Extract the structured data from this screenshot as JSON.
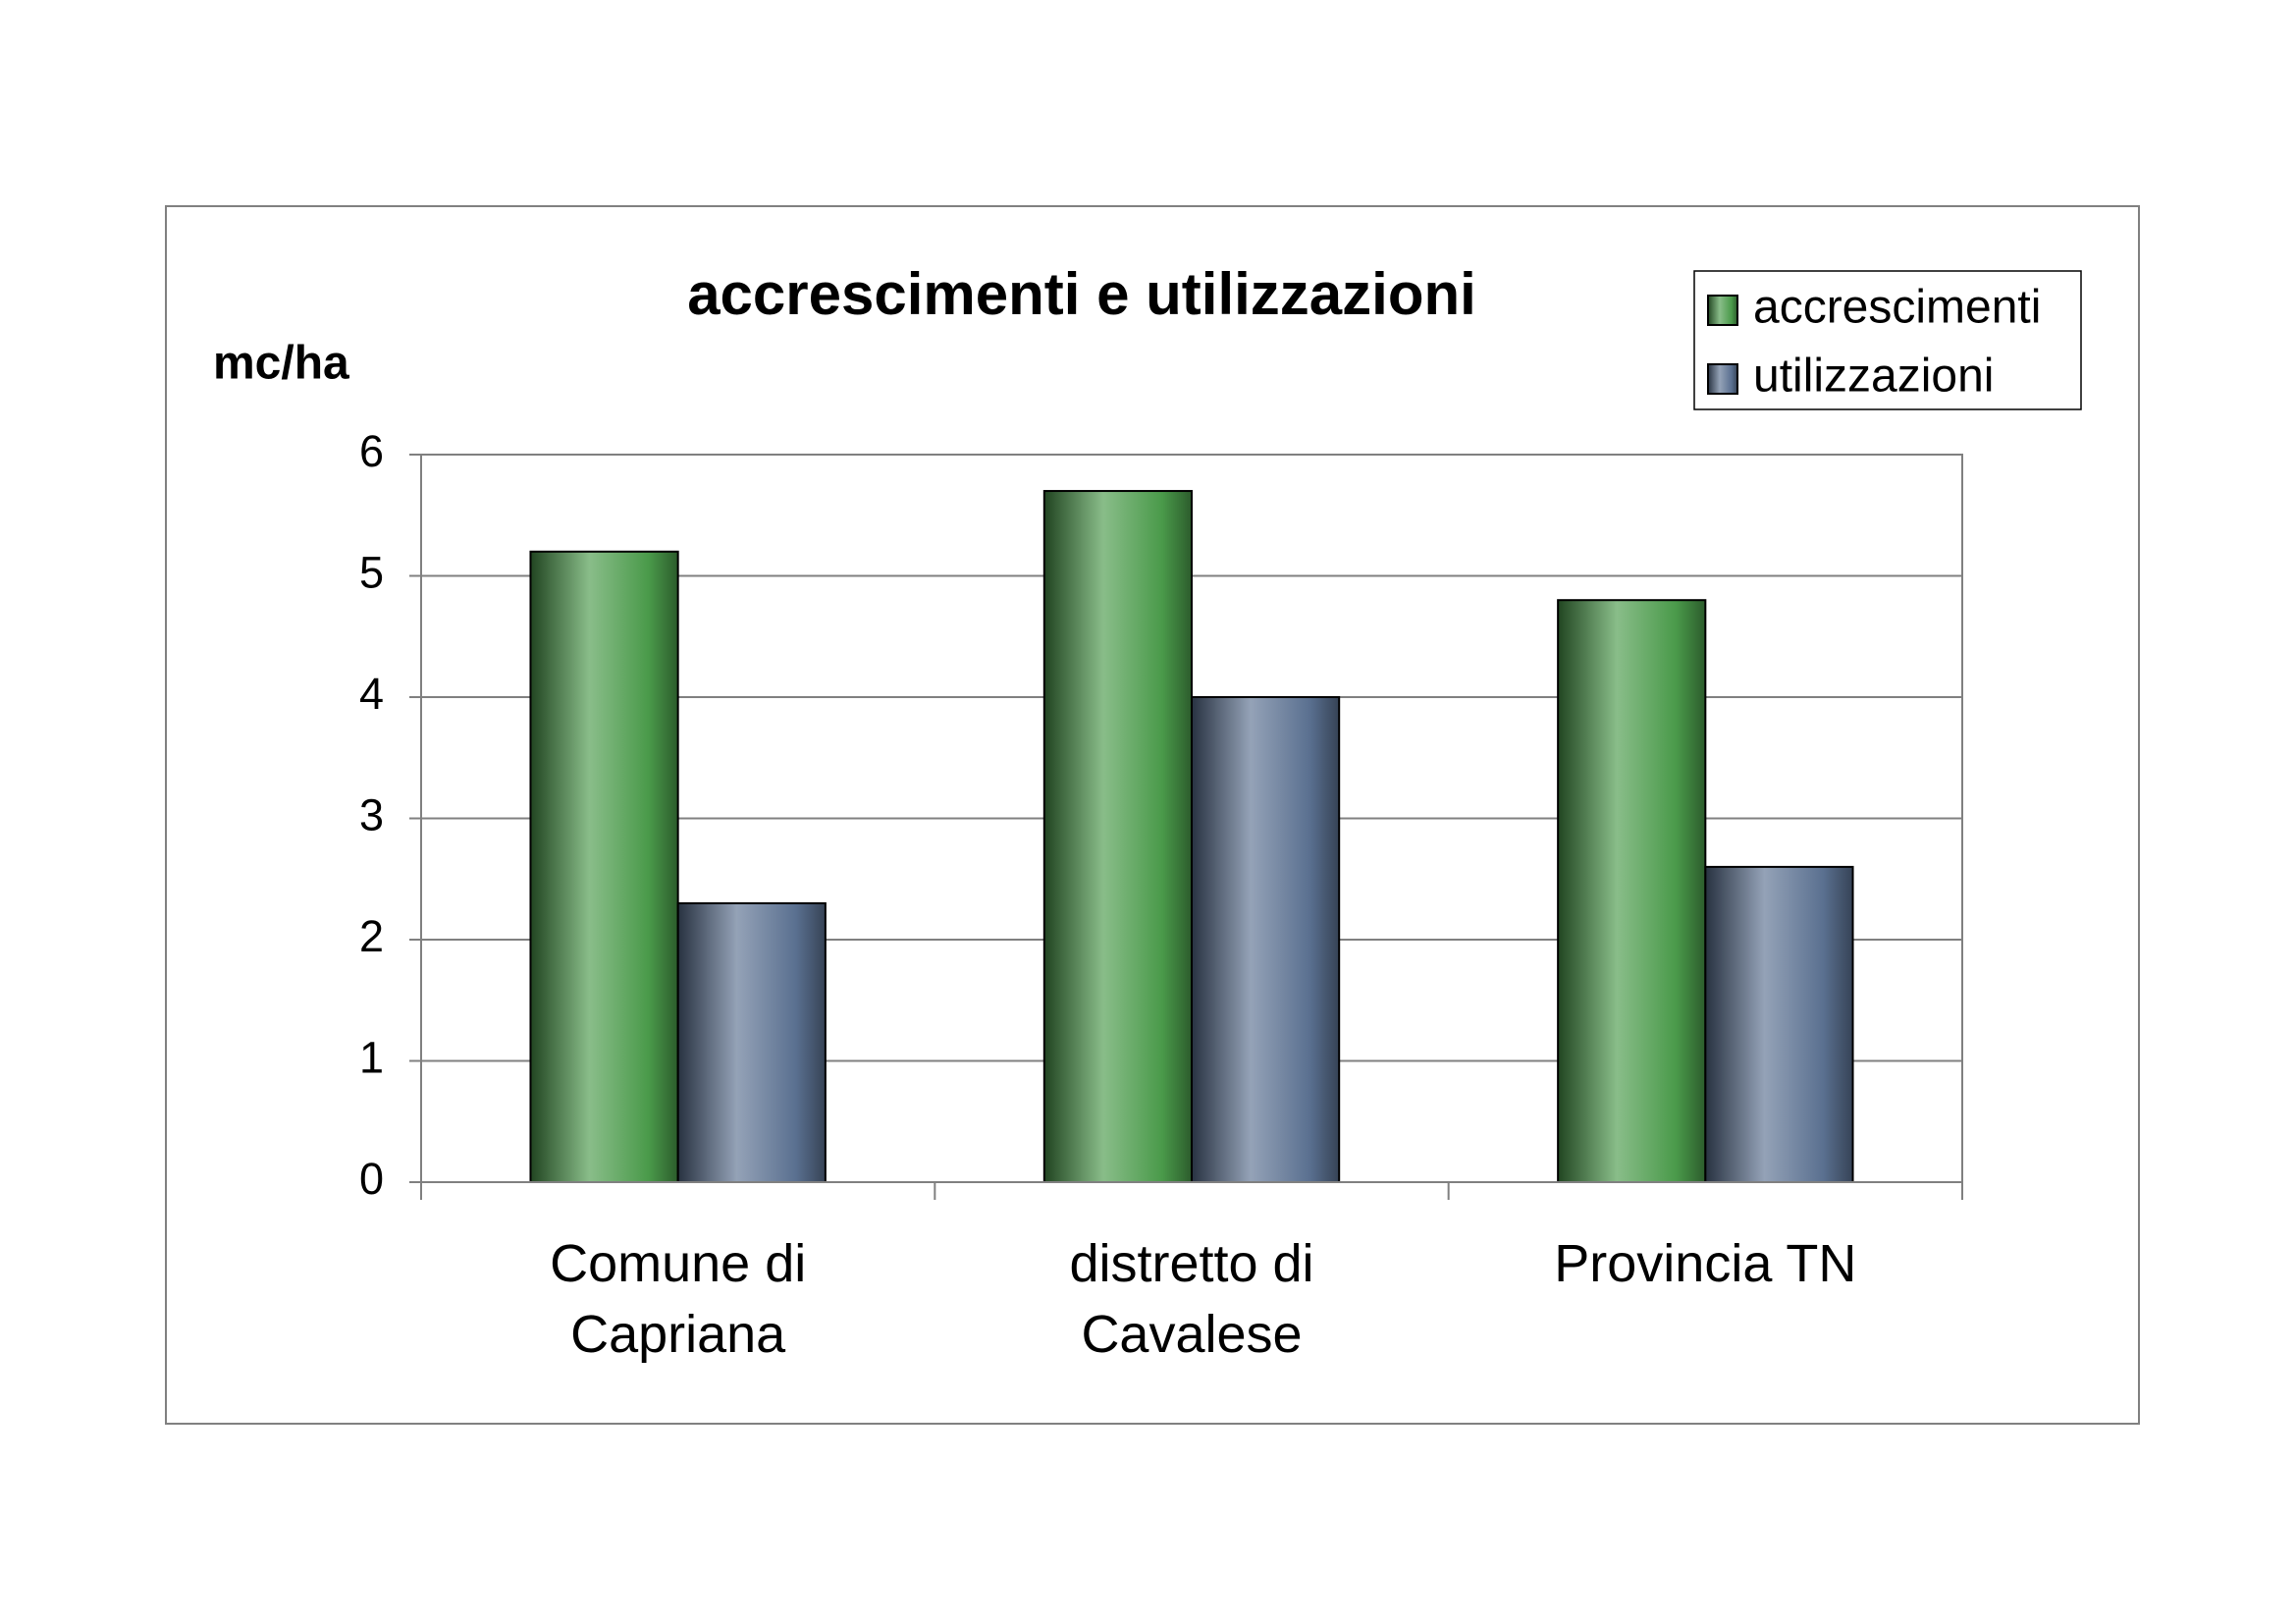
{
  "chart_data": {
    "type": "bar",
    "title": "accrescimenti e utilizzazioni",
    "y_label": "mc/ha",
    "categories": [
      "Comune di Capriana",
      "distretto di Cavalese",
      "Provincia TN"
    ],
    "series": [
      {
        "name": "accrescimenti",
        "color": "#4a9a4a",
        "values": [
          5.2,
          5.7,
          4.8
        ]
      },
      {
        "name": "utilizzazioni",
        "color": "#5a7090",
        "values": [
          2.3,
          4.0,
          2.6
        ]
      }
    ],
    "ylim": [
      0,
      6
    ],
    "yticks": [
      0,
      1,
      2,
      3,
      4,
      5,
      6
    ],
    "grid": true,
    "legend": "top-right"
  }
}
